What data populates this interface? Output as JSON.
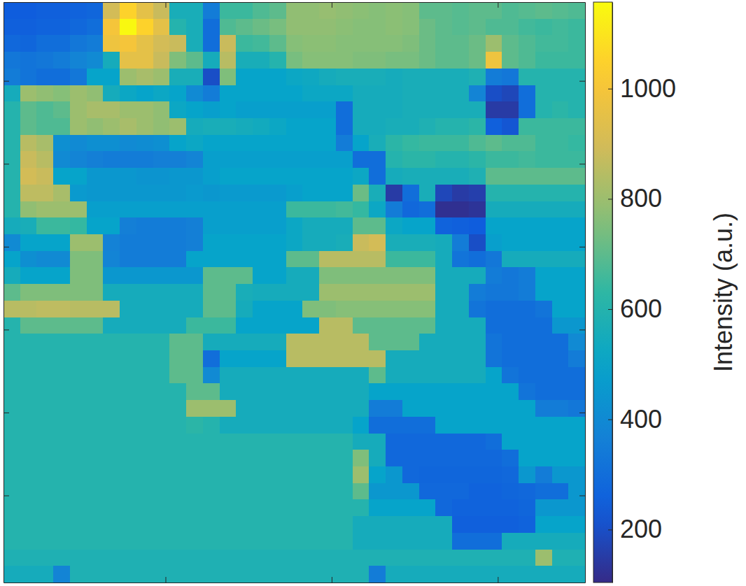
{
  "chart_data": {
    "type": "heatmap",
    "x": [
      1.5,
      3.5,
      5.5,
      7.5,
      9.5,
      11.5,
      13.5,
      15.5,
      17.5,
      19.5,
      21.5,
      23.5,
      25.5,
      27.5,
      29.5,
      31.5,
      33.5,
      35.5,
      37.5,
      39.5,
      41.5,
      43.5,
      45.5,
      47.5,
      49.5,
      51.5,
      53.5,
      55.5,
      57.5,
      59.5,
      61.5,
      63.5,
      65.5,
      67.5,
      69.5
    ],
    "y": [
      1.5,
      3.5,
      5.5,
      7.5,
      9.5,
      11.5,
      13.5,
      15.5,
      17.5,
      19.5,
      21.5,
      23.5,
      25.5,
      27.5,
      29.5,
      31.5,
      33.5,
      35.5,
      37.5,
      39.5,
      41.5,
      43.5,
      45.5,
      47.5,
      49.5,
      51.5,
      53.5,
      55.5,
      57.5,
      59.5,
      61.5,
      63.5,
      65.5,
      67.5,
      69.5
    ],
    "z": [
      [
        240,
        240,
        250,
        250,
        260,
        270,
        900,
        1050,
        950,
        880,
        560,
        560,
        350,
        650,
        650,
        680,
        700,
        780,
        780,
        790,
        780,
        770,
        760,
        770,
        760,
        700,
        700,
        690,
        700,
        700,
        680,
        690,
        700,
        690,
        680
      ],
      [
        250,
        250,
        260,
        260,
        280,
        300,
        1000,
        1150,
        1050,
        950,
        600,
        560,
        300,
        680,
        700,
        720,
        740,
        780,
        780,
        780,
        770,
        760,
        760,
        770,
        760,
        720,
        700,
        690,
        700,
        680,
        680,
        660,
        650,
        660,
        650
      ],
      [
        280,
        270,
        300,
        300,
        330,
        350,
        980,
        1000,
        950,
        900,
        880,
        560,
        300,
        880,
        650,
        660,
        700,
        760,
        770,
        770,
        760,
        760,
        760,
        760,
        750,
        720,
        700,
        700,
        720,
        800,
        700,
        680,
        660,
        660,
        650
      ],
      [
        330,
        320,
        330,
        350,
        380,
        400,
        550,
        950,
        950,
        880,
        750,
        700,
        550,
        850,
        560,
        560,
        600,
        740,
        760,
        760,
        760,
        750,
        750,
        740,
        740,
        720,
        700,
        700,
        720,
        980,
        700,
        680,
        650,
        650,
        650
      ],
      [
        350,
        320,
        300,
        300,
        330,
        500,
        500,
        800,
        820,
        800,
        560,
        560,
        200,
        750,
        500,
        500,
        500,
        520,
        530,
        550,
        560,
        560,
        560,
        550,
        560,
        560,
        560,
        560,
        580,
        350,
        330,
        600,
        600,
        600,
        600
      ],
      [
        550,
        800,
        780,
        760,
        800,
        780,
        550,
        520,
        500,
        520,
        500,
        400,
        350,
        500,
        500,
        500,
        500,
        500,
        520,
        520,
        520,
        550,
        550,
        550,
        560,
        560,
        560,
        560,
        380,
        200,
        180,
        300,
        600,
        600,
        600
      ],
      [
        600,
        700,
        680,
        700,
        800,
        820,
        820,
        800,
        800,
        780,
        520,
        500,
        480,
        500,
        480,
        480,
        480,
        480,
        480,
        480,
        300,
        550,
        550,
        550,
        560,
        560,
        560,
        560,
        560,
        150,
        150,
        300,
        600,
        620,
        600
      ],
      [
        600,
        700,
        680,
        680,
        800,
        780,
        800,
        820,
        800,
        780,
        800,
        550,
        560,
        560,
        550,
        540,
        520,
        500,
        500,
        500,
        300,
        550,
        550,
        560,
        560,
        580,
        600,
        600,
        620,
        250,
        220,
        650,
        650,
        650,
        650
      ],
      [
        600,
        850,
        820,
        420,
        400,
        420,
        420,
        400,
        410,
        420,
        500,
        520,
        500,
        500,
        500,
        500,
        500,
        500,
        500,
        500,
        350,
        500,
        560,
        620,
        640,
        650,
        650,
        650,
        680,
        700,
        680,
        680,
        650,
        650,
        640
      ],
      [
        600,
        880,
        850,
        400,
        380,
        360,
        350,
        350,
        350,
        360,
        360,
        380,
        480,
        480,
        480,
        480,
        480,
        480,
        480,
        480,
        480,
        300,
        300,
        600,
        620,
        620,
        600,
        600,
        620,
        650,
        650,
        660,
        650,
        650,
        650
      ],
      [
        600,
        900,
        880,
        500,
        500,
        450,
        450,
        450,
        440,
        440,
        450,
        450,
        480,
        500,
        500,
        500,
        500,
        500,
        500,
        500,
        500,
        520,
        300,
        550,
        560,
        560,
        560,
        560,
        580,
        700,
        700,
        700,
        700,
        700,
        700
      ],
      [
        600,
        860,
        860,
        820,
        460,
        450,
        450,
        450,
        450,
        450,
        450,
        460,
        450,
        460,
        460,
        460,
        460,
        480,
        500,
        500,
        500,
        720,
        560,
        150,
        300,
        560,
        180,
        150,
        160,
        600,
        600,
        600,
        600,
        600,
        600
      ],
      [
        600,
        780,
        800,
        800,
        800,
        480,
        480,
        480,
        480,
        480,
        480,
        480,
        480,
        480,
        480,
        480,
        480,
        650,
        650,
        650,
        660,
        640,
        520,
        350,
        280,
        300,
        120,
        120,
        130,
        550,
        550,
        550,
        550,
        550,
        550
      ],
      [
        550,
        560,
        650,
        650,
        640,
        500,
        500,
        360,
        350,
        350,
        350,
        360,
        480,
        480,
        480,
        480,
        480,
        520,
        550,
        550,
        550,
        700,
        700,
        520,
        500,
        500,
        260,
        250,
        240,
        500,
        500,
        500,
        500,
        500,
        500
      ],
      [
        400,
        500,
        500,
        500,
        800,
        800,
        370,
        350,
        350,
        350,
        350,
        360,
        500,
        500,
        500,
        500,
        500,
        520,
        550,
        550,
        560,
        880,
        900,
        560,
        560,
        560,
        550,
        350,
        200,
        480,
        500,
        500,
        500,
        500,
        500
      ],
      [
        500,
        420,
        400,
        400,
        750,
        750,
        380,
        350,
        350,
        350,
        350,
        500,
        500,
        500,
        500,
        500,
        500,
        700,
        700,
        850,
        850,
        850,
        850,
        650,
        650,
        650,
        550,
        320,
        300,
        330,
        550,
        550,
        550,
        550,
        550
      ],
      [
        550,
        500,
        500,
        500,
        750,
        750,
        450,
        450,
        450,
        450,
        450,
        450,
        700,
        700,
        700,
        500,
        500,
        550,
        550,
        750,
        750,
        750,
        750,
        750,
        750,
        750,
        550,
        550,
        550,
        350,
        330,
        350,
        500,
        500,
        500
      ],
      [
        700,
        750,
        750,
        750,
        750,
        750,
        550,
        550,
        550,
        550,
        550,
        550,
        700,
        700,
        560,
        550,
        550,
        550,
        550,
        800,
        800,
        800,
        800,
        800,
        800,
        800,
        550,
        550,
        350,
        330,
        330,
        350,
        500,
        500,
        500
      ],
      [
        850,
        850,
        860,
        860,
        850,
        850,
        850,
        550,
        550,
        550,
        550,
        550,
        700,
        700,
        550,
        500,
        500,
        500,
        750,
        750,
        760,
        760,
        760,
        760,
        760,
        760,
        550,
        550,
        320,
        300,
        300,
        300,
        320,
        500,
        500
      ],
      [
        600,
        700,
        700,
        700,
        700,
        700,
        550,
        550,
        550,
        550,
        550,
        650,
        650,
        650,
        500,
        500,
        500,
        500,
        500,
        850,
        850,
        700,
        700,
        700,
        700,
        700,
        550,
        550,
        550,
        300,
        300,
        300,
        300,
        450,
        450
      ],
      [
        600,
        600,
        600,
        600,
        600,
        600,
        600,
        600,
        600,
        600,
        700,
        700,
        550,
        550,
        550,
        550,
        550,
        850,
        850,
        850,
        850,
        850,
        700,
        700,
        700,
        550,
        550,
        550,
        550,
        320,
        300,
        300,
        300,
        300,
        400
      ],
      [
        600,
        600,
        600,
        600,
        600,
        600,
        600,
        600,
        600,
        600,
        700,
        700,
        300,
        500,
        500,
        500,
        500,
        850,
        850,
        850,
        850,
        850,
        850,
        550,
        550,
        550,
        550,
        550,
        550,
        320,
        300,
        300,
        300,
        300,
        350
      ],
      [
        600,
        600,
        600,
        600,
        600,
        600,
        600,
        600,
        600,
        600,
        700,
        700,
        400,
        550,
        550,
        550,
        550,
        550,
        550,
        550,
        550,
        550,
        700,
        550,
        550,
        550,
        550,
        550,
        550,
        500,
        320,
        300,
        300,
        300,
        300
      ],
      [
        600,
        600,
        600,
        600,
        600,
        600,
        600,
        600,
        600,
        600,
        600,
        700,
        700,
        550,
        550,
        550,
        550,
        550,
        550,
        550,
        550,
        550,
        500,
        500,
        500,
        500,
        500,
        500,
        500,
        500,
        500,
        320,
        300,
        300,
        300
      ],
      [
        600,
        600,
        600,
        600,
        600,
        600,
        600,
        600,
        600,
        600,
        600,
        800,
        800,
        800,
        550,
        550,
        550,
        550,
        550,
        550,
        550,
        550,
        350,
        350,
        500,
        500,
        500,
        500,
        500,
        500,
        500,
        500,
        350,
        350,
        330
      ],
      [
        600,
        600,
        600,
        600,
        600,
        600,
        600,
        600,
        600,
        600,
        600,
        620,
        600,
        550,
        550,
        550,
        550,
        550,
        550,
        550,
        550,
        500,
        300,
        300,
        300,
        300,
        500,
        500,
        500,
        500,
        500,
        500,
        500,
        500,
        500
      ],
      [
        600,
        600,
        600,
        600,
        600,
        600,
        600,
        600,
        600,
        600,
        600,
        600,
        600,
        600,
        600,
        600,
        600,
        600,
        600,
        600,
        600,
        550,
        550,
        280,
        280,
        280,
        280,
        280,
        280,
        300,
        500,
        500,
        500,
        500,
        500
      ],
      [
        600,
        600,
        600,
        600,
        600,
        600,
        600,
        600,
        600,
        600,
        600,
        600,
        600,
        600,
        600,
        600,
        600,
        600,
        600,
        600,
        600,
        750,
        550,
        280,
        280,
        280,
        280,
        280,
        280,
        280,
        300,
        500,
        500,
        500,
        500
      ],
      [
        600,
        600,
        600,
        600,
        600,
        600,
        600,
        600,
        600,
        600,
        600,
        600,
        600,
        600,
        600,
        600,
        600,
        600,
        600,
        600,
        600,
        800,
        500,
        450,
        280,
        270,
        270,
        270,
        270,
        270,
        280,
        450,
        350,
        450,
        450
      ],
      [
        600,
        600,
        600,
        600,
        600,
        600,
        600,
        600,
        600,
        600,
        600,
        600,
        600,
        600,
        600,
        600,
        600,
        600,
        600,
        600,
        600,
        700,
        450,
        450,
        450,
        280,
        280,
        280,
        260,
        260,
        270,
        280,
        300,
        300,
        450
      ],
      [
        600,
        600,
        600,
        600,
        600,
        600,
        600,
        600,
        600,
        600,
        600,
        600,
        600,
        600,
        600,
        600,
        600,
        600,
        600,
        600,
        600,
        600,
        500,
        500,
        500,
        500,
        280,
        260,
        260,
        260,
        260,
        270,
        450,
        450,
        450
      ],
      [
        600,
        600,
        600,
        600,
        600,
        600,
        600,
        600,
        600,
        600,
        600,
        600,
        600,
        600,
        600,
        600,
        600,
        600,
        600,
        600,
        600,
        550,
        550,
        550,
        550,
        550,
        550,
        250,
        250,
        250,
        250,
        260,
        500,
        500,
        500
      ],
      [
        600,
        600,
        600,
        600,
        600,
        600,
        600,
        600,
        600,
        600,
        600,
        600,
        600,
        600,
        600,
        600,
        600,
        600,
        600,
        600,
        600,
        550,
        550,
        550,
        550,
        550,
        550,
        300,
        300,
        300,
        550,
        550,
        550,
        550,
        550
      ],
      [
        580,
        580,
        580,
        580,
        580,
        580,
        580,
        580,
        580,
        580,
        580,
        580,
        580,
        580,
        580,
        580,
        580,
        580,
        580,
        580,
        580,
        580,
        580,
        580,
        580,
        580,
        580,
        580,
        580,
        580,
        580,
        580,
        800,
        580,
        580
      ],
      [
        550,
        550,
        550,
        380,
        580,
        580,
        580,
        580,
        580,
        580,
        580,
        580,
        580,
        580,
        580,
        580,
        580,
        580,
        580,
        580,
        580,
        580,
        350,
        550,
        550,
        550,
        550,
        550,
        550,
        550,
        550,
        550,
        550,
        550,
        550
      ]
    ],
    "xlim": [
      0.5,
      70.5
    ],
    "ylim": [
      0.5,
      70.5
    ],
    "xticks": [
      20,
      40,
      60
    ],
    "yticks": [
      10,
      20,
      30,
      40,
      50,
      60
    ],
    "tick_labels": false,
    "clim": [
      104,
      1157
    ],
    "cticks": [
      200,
      400,
      600,
      800,
      1000
    ],
    "colorbar_label": "Intensity (a.u.)"
  }
}
